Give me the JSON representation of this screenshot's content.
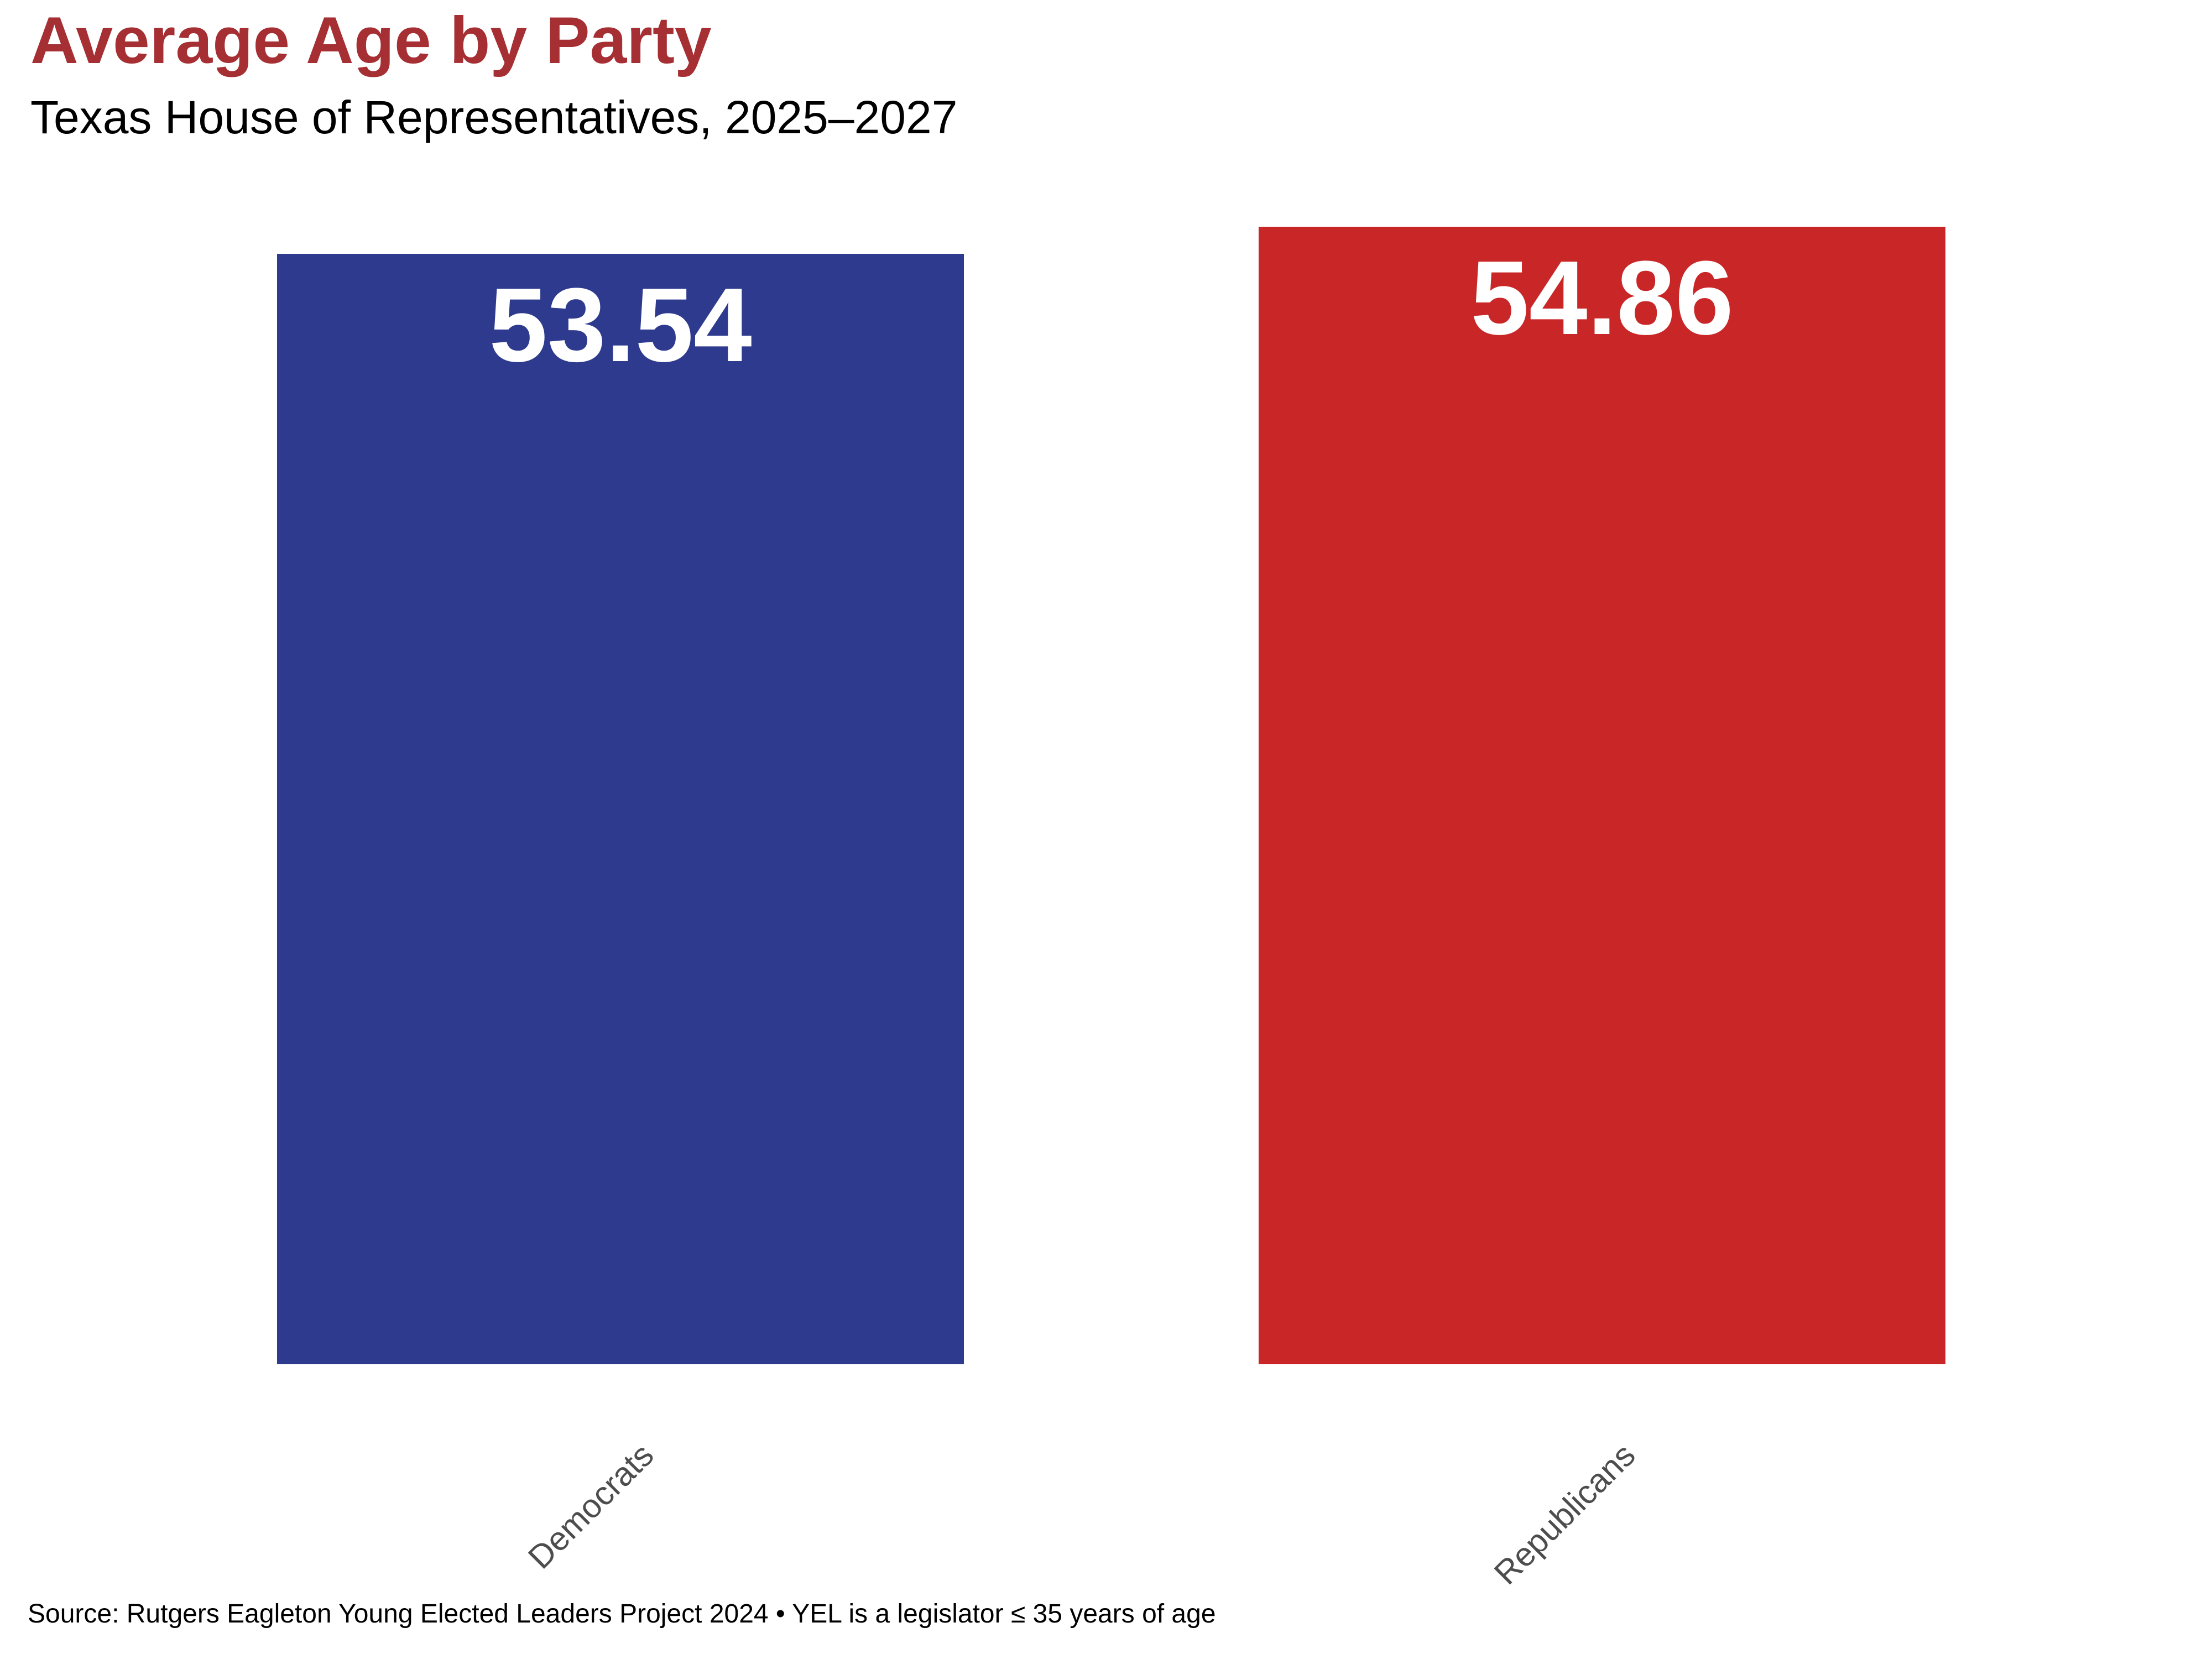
{
  "chart_data": {
    "type": "bar",
    "title": "Average Age by Party",
    "subtitle": "Texas House of Representatives, 2025–2027",
    "categories": [
      "Democrats",
      "Republicans"
    ],
    "values": [
      53.54,
      54.86
    ],
    "value_labels": [
      "53.54",
      "54.86"
    ],
    "series": [
      {
        "name": "Democrats",
        "value": 53.54,
        "color": "#2E3A8E"
      },
      {
        "name": "Republicans",
        "value": 54.86,
        "color": "#C92727"
      }
    ],
    "bar_colors": [
      "#2E3A8E",
      "#C92727"
    ],
    "ylim": [
      0,
      56
    ],
    "grid": false,
    "legend": "none",
    "xlabel": "",
    "ylabel": "",
    "title_color": "#A52F33",
    "subtitle_color": "#000000",
    "value_label_color": "#FFFFFF",
    "category_label_color": "#4D4D4D",
    "background_color": "#FFFFFF",
    "source_note": "Source: Rutgers Eagleton Young Elected Leaders Project 2024 • YEL is a legislator ≤ 35 years of age"
  }
}
